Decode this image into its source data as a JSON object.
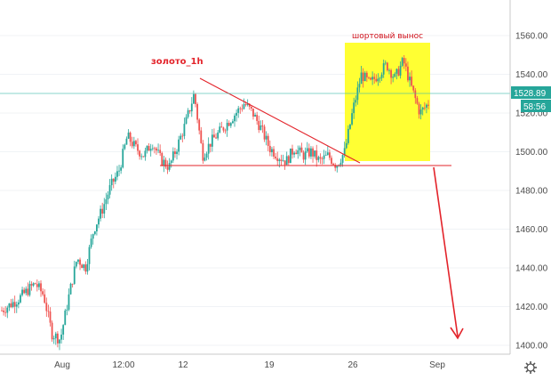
{
  "chart_data": {
    "type": "candlestick",
    "ylim": [
      1393,
      1570
    ],
    "y_ticks": [
      "1400.00",
      "1420.00",
      "1440.00",
      "1460.00",
      "1480.00",
      "1500.00",
      "1520.00",
      "1540.00",
      "1560.00"
    ],
    "x_ticks": [
      "Aug",
      "12:00",
      "12",
      "19",
      "26",
      "Sep"
    ],
    "price_label": "1528.89",
    "countdown": "58:56",
    "colors": {
      "up": "#26a69a",
      "down": "#ef5350",
      "annotation": "#e3232a",
      "highlight": "#ffff33",
      "price_line": "#3cb8a8"
    },
    "path": [
      1418,
      1421,
      1424,
      1428,
      1432,
      1426,
      1406,
      1403,
      1425,
      1445,
      1440,
      1460,
      1470,
      1482,
      1490,
      1508,
      1502,
      1498,
      1505,
      1496,
      1492,
      1503,
      1515,
      1530,
      1498,
      1505,
      1510,
      1515,
      1520,
      1525,
      1520,
      1512,
      1502,
      1498,
      1495,
      1502,
      1498,
      1500,
      1495,
      1498,
      1493,
      1500,
      1522,
      1540,
      1535,
      1540,
      1545,
      1538,
      1547,
      1533,
      1520,
      1525
    ],
    "annotations": {
      "title": "золото_1h",
      "box_label": "шортовый вынос"
    }
  }
}
